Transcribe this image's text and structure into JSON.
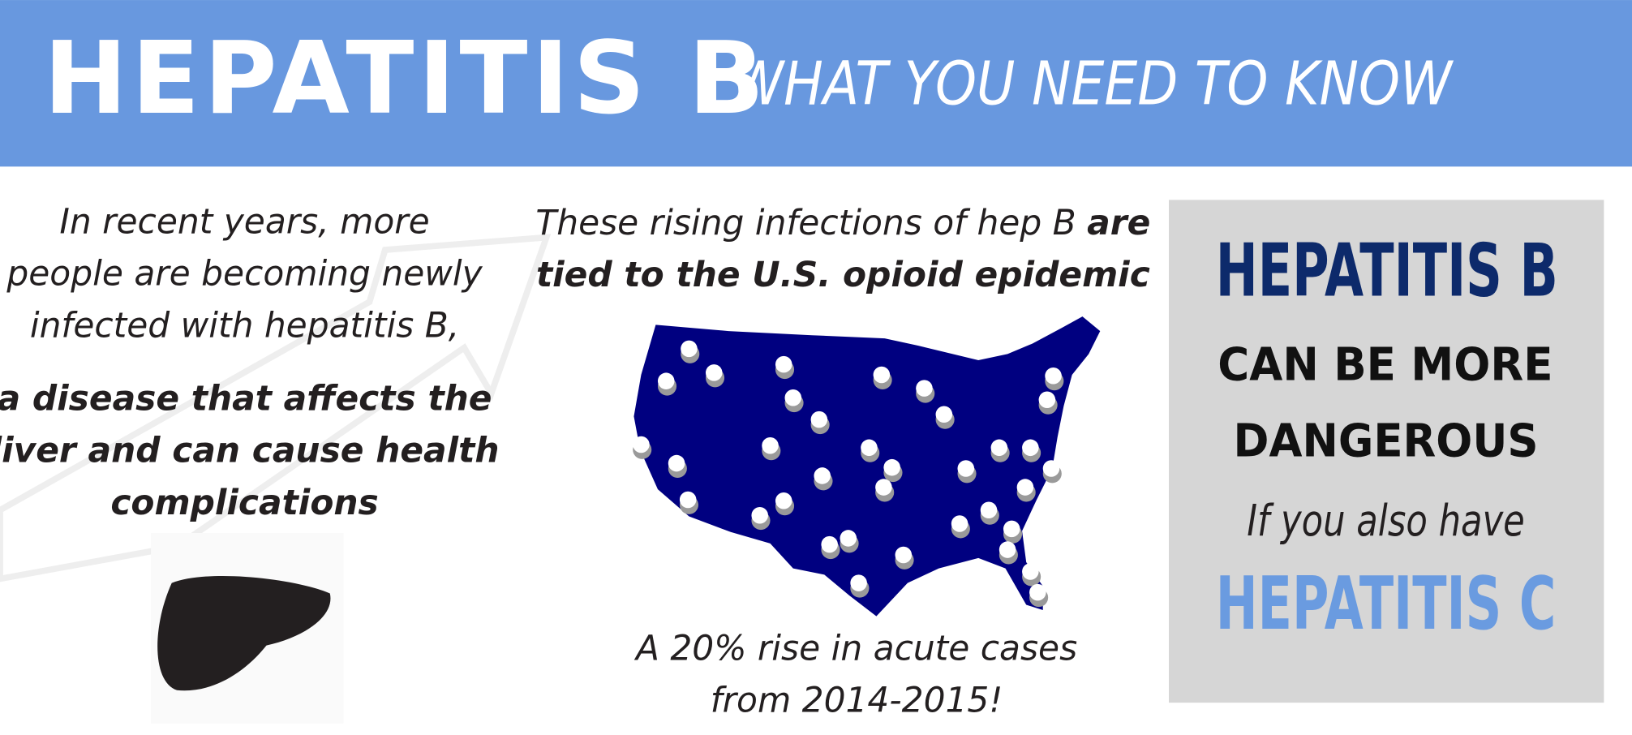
{
  "header": {
    "title": "HEPATITIS B",
    "subtitle": "WHAT YOU NEED TO KNOW"
  },
  "left": {
    "intro": [
      "In recent years, more",
      "people are becoming newly",
      "infected with hepatitis B,"
    ],
    "emphasis": [
      "a disease that affects the",
      "liver and can cause health",
      "complications"
    ]
  },
  "middle": {
    "heading": {
      "regular": "These rising infections of hep B",
      "bold": [
        "are",
        "tied to the U.S. opioid epidemic"
      ]
    },
    "stat": [
      "A 20% rise in acute cases",
      "from 2014-2015!"
    ]
  },
  "callout": {
    "line1": "HEPATITIS B",
    "line2": "CAN BE MORE",
    "line3": "DANGEROUS",
    "line4": "If you also have",
    "line5": "HEPATITIS C"
  }
}
